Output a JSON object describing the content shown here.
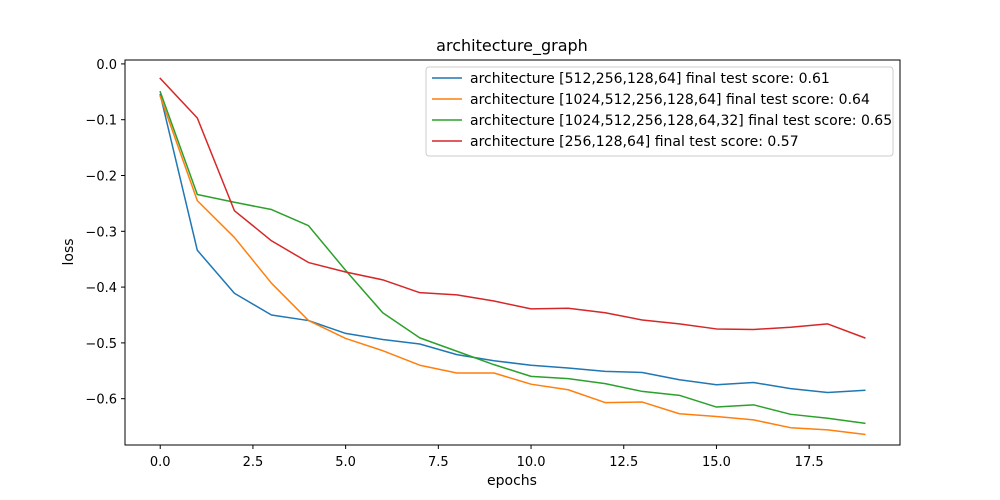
{
  "chart_data": {
    "type": "line",
    "title": "architecture_graph",
    "xlabel": "epochs",
    "ylabel": "loss",
    "xlim": [
      -0.95,
      19.95
    ],
    "ylim": [
      -0.683,
      0.007
    ],
    "xticks": [
      0.0,
      2.5,
      5.0,
      7.5,
      10.0,
      12.5,
      15.0,
      17.5
    ],
    "xtick_labels": [
      "0.0",
      "2.5",
      "5.0",
      "7.5",
      "10.0",
      "12.5",
      "15.0",
      "17.5"
    ],
    "yticks": [
      0.0,
      -0.1,
      -0.2,
      -0.3,
      -0.4,
      -0.5,
      -0.6
    ],
    "ytick_labels": [
      "0.0",
      "−0.1",
      "−0.2",
      "−0.3",
      "−0.4",
      "−0.5",
      "−0.6"
    ],
    "grid": false,
    "legend_position": "top-right",
    "x": [
      0,
      1,
      2,
      3,
      4,
      5,
      6,
      7,
      8,
      9,
      10,
      11,
      12,
      13,
      14,
      15,
      16,
      17,
      18,
      19
    ],
    "series": [
      {
        "name": "architecture [512,256,128,64] final test score: 0.61",
        "color": "#1f77b4",
        "values": [
          -0.055,
          -0.334,
          -0.411,
          -0.45,
          -0.46,
          -0.483,
          -0.494,
          -0.502,
          -0.521,
          -0.532,
          -0.54,
          -0.545,
          -0.551,
          -0.553,
          -0.566,
          -0.575,
          -0.571,
          -0.582,
          -0.589,
          -0.585
        ]
      },
      {
        "name": "architecture [1024,512,256,128,64] final test score: 0.64",
        "color": "#ff7f0e",
        "values": [
          -0.058,
          -0.245,
          -0.311,
          -0.393,
          -0.46,
          -0.492,
          -0.514,
          -0.54,
          -0.554,
          -0.554,
          -0.574,
          -0.584,
          -0.607,
          -0.606,
          -0.627,
          -0.632,
          -0.638,
          -0.652,
          -0.656,
          -0.664
        ]
      },
      {
        "name": "architecture [1024,512,256,128,64,32] final test score: 0.65",
        "color": "#2ca02c",
        "values": [
          -0.05,
          -0.234,
          -0.248,
          -0.261,
          -0.29,
          -0.37,
          -0.446,
          -0.491,
          -0.515,
          -0.539,
          -0.56,
          -0.564,
          -0.573,
          -0.587,
          -0.594,
          -0.615,
          -0.611,
          -0.628,
          -0.635,
          -0.644
        ]
      },
      {
        "name": "architecture [256,128,64] final test score: 0.57",
        "color": "#d62728",
        "values": [
          -0.026,
          -0.097,
          -0.263,
          -0.317,
          -0.356,
          -0.373,
          -0.387,
          -0.41,
          -0.414,
          -0.425,
          -0.439,
          -0.438,
          -0.446,
          -0.459,
          -0.466,
          -0.475,
          -0.476,
          -0.472,
          -0.466,
          -0.491
        ]
      }
    ]
  }
}
